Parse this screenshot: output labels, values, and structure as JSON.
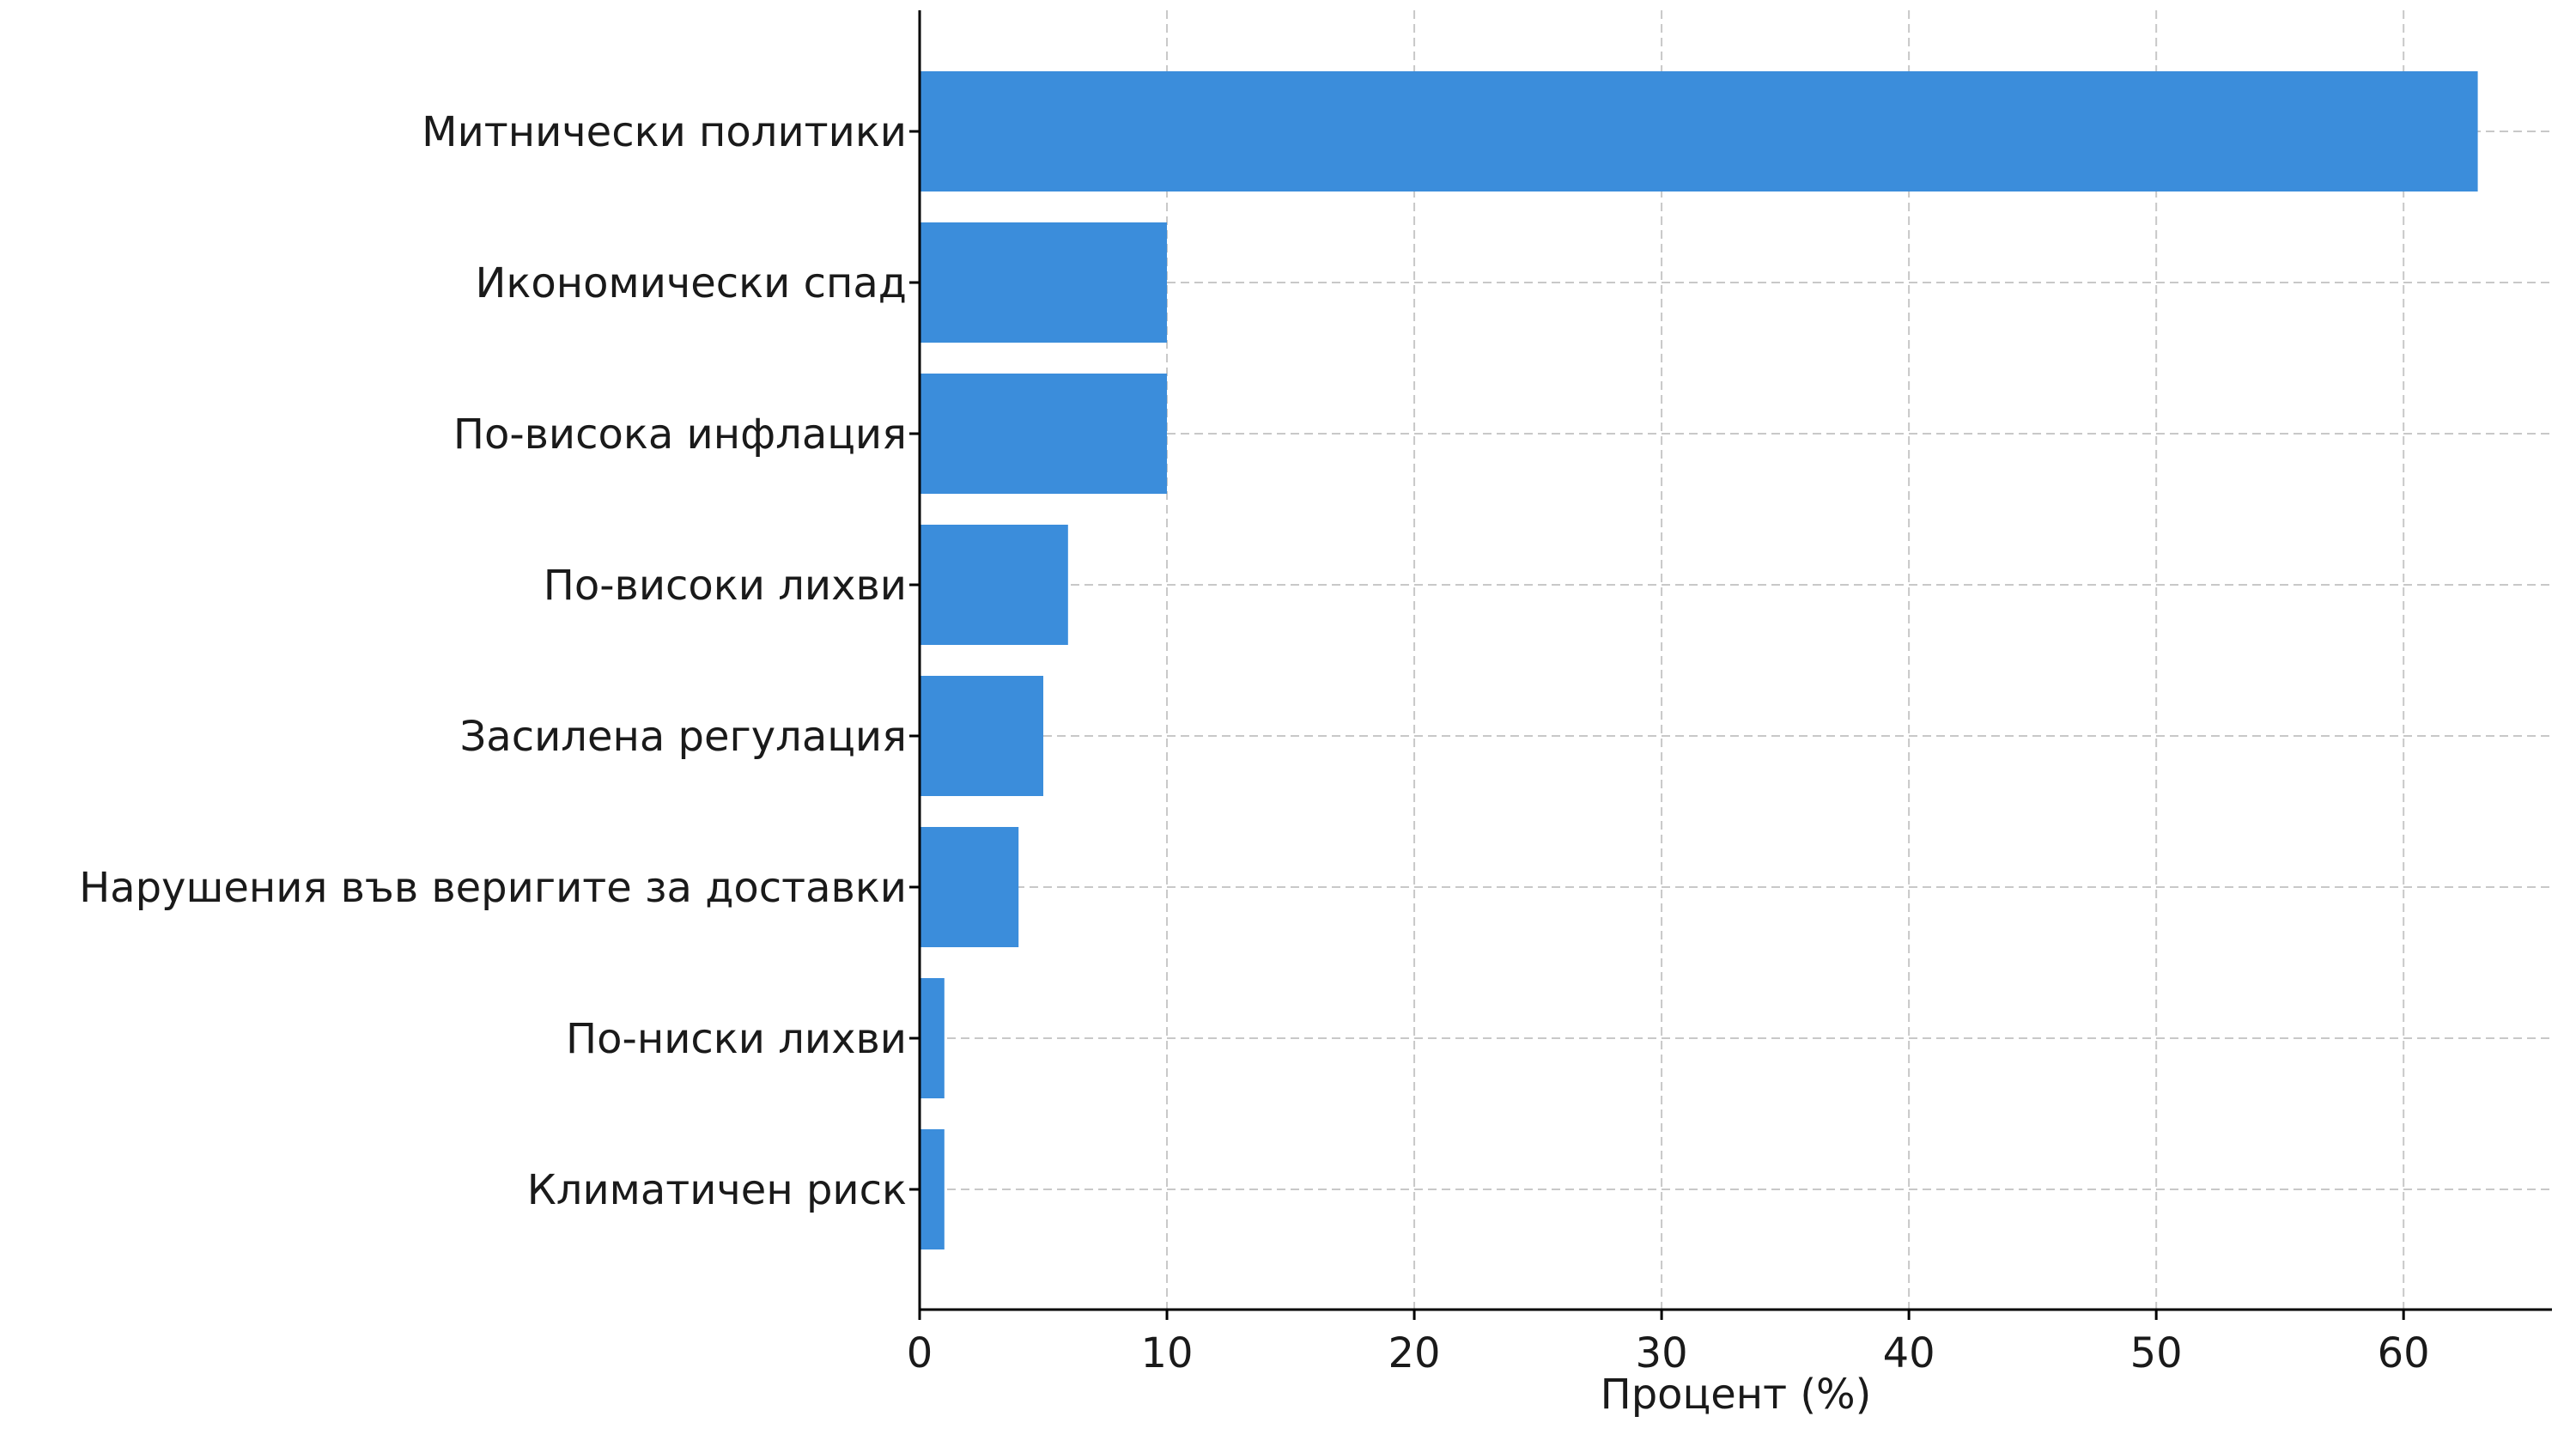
{
  "chart_data": {
    "type": "bar",
    "orientation": "horizontal",
    "categories": [
      "Митнически политики",
      "Икономически спад",
      "По-висока инфлация",
      "По-високи лихви",
      "Засилена регулация",
      "Нарушения във веригите за доставки",
      "По-ниски лихви",
      "Климатичен риск"
    ],
    "values": [
      63,
      10,
      10,
      6,
      5,
      4,
      1,
      1
    ],
    "xlabel": "Процент (%)",
    "ylabel": "",
    "xlim": [
      0,
      66
    ],
    "xticks": [
      0,
      10,
      20,
      30,
      40,
      50,
      60
    ],
    "grid": true,
    "bar_color": "#3b8ddb"
  }
}
